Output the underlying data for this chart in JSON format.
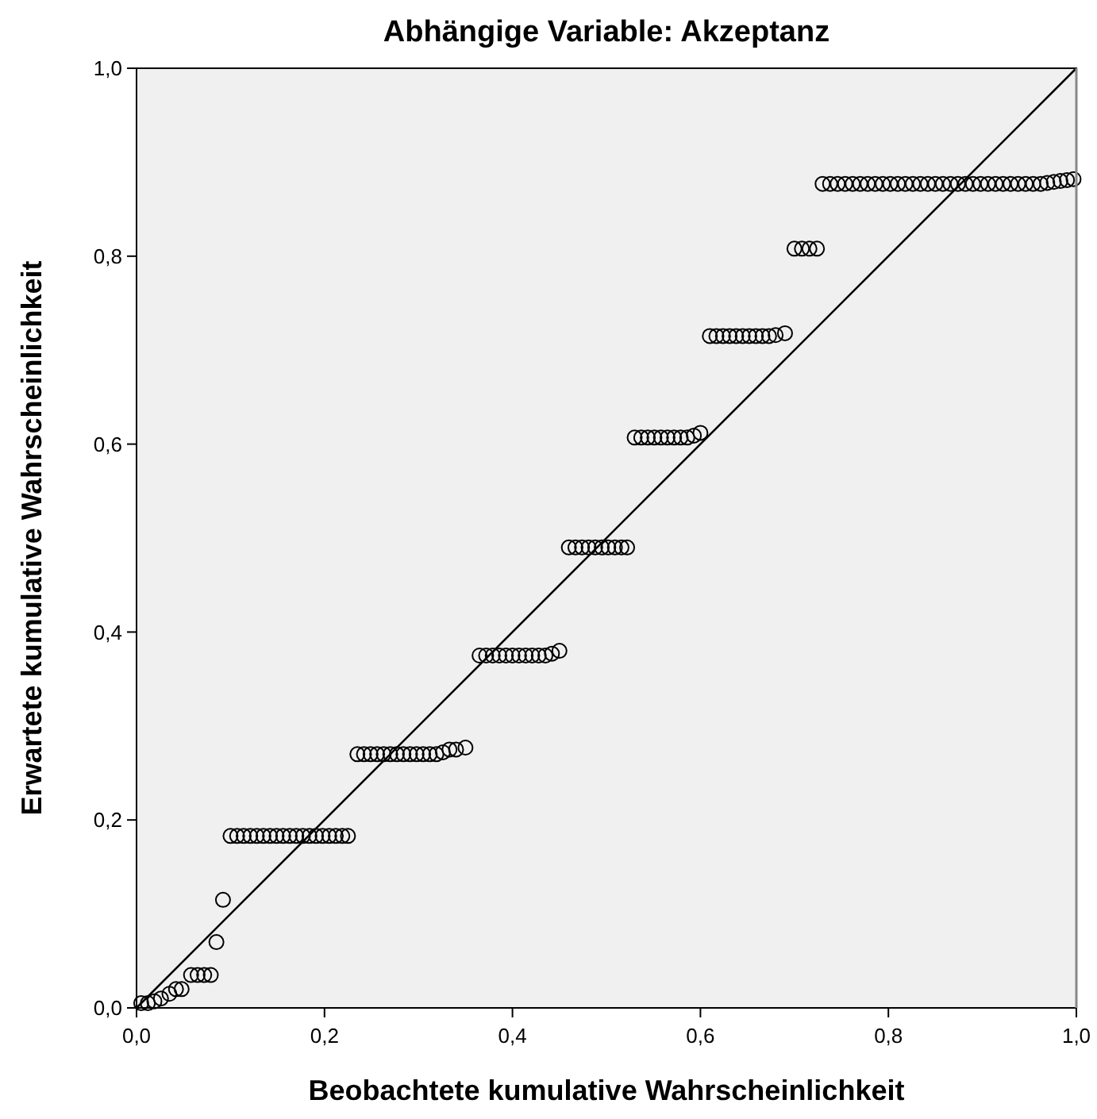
{
  "chart_data": {
    "type": "scatter",
    "title": "Abhängige Variable: Akzeptanz",
    "xlabel": "Beobachtete kumulative Wahrscheinlichkeit",
    "ylabel": "Erwartete kumulative Wahrscheinlichkeit",
    "xlim": [
      0,
      1
    ],
    "ylim": [
      0,
      1
    ],
    "xticks": [
      {
        "value": 0,
        "label": "0,0"
      },
      {
        "value": 0.2,
        "label": "0,2"
      },
      {
        "value": 0.4,
        "label": "0,4"
      },
      {
        "value": 0.6,
        "label": "0,6"
      },
      {
        "value": 0.8,
        "label": "0,8"
      },
      {
        "value": 1,
        "label": "1,0"
      }
    ],
    "yticks": [
      {
        "value": 0,
        "label": "0,0"
      },
      {
        "value": 0.2,
        "label": "0,2"
      },
      {
        "value": 0.4,
        "label": "0,4"
      },
      {
        "value": 0.6,
        "label": "0,6"
      },
      {
        "value": 0.8,
        "label": "0,8"
      },
      {
        "value": 1,
        "label": "1,0"
      }
    ],
    "grid": false,
    "series": [
      {
        "marker": "circle",
        "color": "#000000",
        "x": [
          0.005,
          0.012,
          0.019,
          0.026,
          0.035,
          0.042,
          0.048,
          0.058,
          0.065,
          0.072,
          0.079,
          0.085,
          0.092,
          0.1,
          0.107,
          0.114,
          0.121,
          0.128,
          0.135,
          0.142,
          0.149,
          0.156,
          0.163,
          0.17,
          0.177,
          0.184,
          0.191,
          0.198,
          0.205,
          0.212,
          0.219,
          0.225,
          0.235,
          0.242,
          0.249,
          0.256,
          0.263,
          0.27,
          0.277,
          0.284,
          0.291,
          0.298,
          0.305,
          0.312,
          0.319,
          0.326,
          0.333,
          0.34,
          0.35,
          0.365,
          0.372,
          0.379,
          0.386,
          0.393,
          0.4,
          0.407,
          0.414,
          0.421,
          0.428,
          0.435,
          0.442,
          0.45,
          0.46,
          0.467,
          0.474,
          0.481,
          0.488,
          0.495,
          0.502,
          0.509,
          0.516,
          0.522,
          0.53,
          0.537,
          0.544,
          0.551,
          0.558,
          0.565,
          0.572,
          0.579,
          0.586,
          0.593,
          0.6,
          0.61,
          0.617,
          0.624,
          0.631,
          0.638,
          0.645,
          0.652,
          0.659,
          0.666,
          0.673,
          0.68,
          0.69,
          0.7,
          0.708,
          0.716,
          0.724,
          0.73,
          0.738,
          0.746,
          0.754,
          0.762,
          0.77,
          0.778,
          0.786,
          0.794,
          0.802,
          0.81,
          0.818,
          0.826,
          0.834,
          0.842,
          0.85,
          0.858,
          0.866,
          0.874,
          0.882,
          0.89,
          0.898,
          0.906,
          0.914,
          0.922,
          0.93,
          0.938,
          0.946,
          0.954,
          0.962,
          0.969,
          0.976,
          0.983,
          0.99,
          0.997
        ],
        "values": [
          0.005,
          0.005,
          0.007,
          0.01,
          0.015,
          0.02,
          0.02,
          0.035,
          0.035,
          0.035,
          0.035,
          0.07,
          0.115,
          0.183,
          0.183,
          0.183,
          0.183,
          0.183,
          0.183,
          0.183,
          0.183,
          0.183,
          0.183,
          0.183,
          0.183,
          0.183,
          0.183,
          0.183,
          0.183,
          0.183,
          0.183,
          0.183,
          0.27,
          0.27,
          0.27,
          0.27,
          0.27,
          0.27,
          0.27,
          0.27,
          0.27,
          0.27,
          0.27,
          0.27,
          0.27,
          0.272,
          0.275,
          0.275,
          0.277,
          0.375,
          0.375,
          0.375,
          0.375,
          0.375,
          0.375,
          0.375,
          0.375,
          0.375,
          0.375,
          0.375,
          0.377,
          0.38,
          0.49,
          0.49,
          0.49,
          0.49,
          0.49,
          0.49,
          0.49,
          0.49,
          0.49,
          0.49,
          0.607,
          0.607,
          0.607,
          0.607,
          0.607,
          0.607,
          0.607,
          0.607,
          0.607,
          0.609,
          0.612,
          0.715,
          0.715,
          0.715,
          0.715,
          0.715,
          0.715,
          0.715,
          0.715,
          0.715,
          0.715,
          0.716,
          0.718,
          0.808,
          0.808,
          0.808,
          0.808,
          0.877,
          0.877,
          0.877,
          0.877,
          0.877,
          0.877,
          0.877,
          0.877,
          0.877,
          0.877,
          0.877,
          0.877,
          0.877,
          0.877,
          0.877,
          0.877,
          0.877,
          0.877,
          0.877,
          0.877,
          0.877,
          0.877,
          0.877,
          0.877,
          0.877,
          0.877,
          0.877,
          0.877,
          0.877,
          0.877,
          0.878,
          0.879,
          0.88,
          0.881,
          0.882
        ]
      },
      {
        "type": "line",
        "color": "#000000",
        "x": [
          0,
          1
        ],
        "values": [
          0,
          1
        ]
      }
    ]
  }
}
